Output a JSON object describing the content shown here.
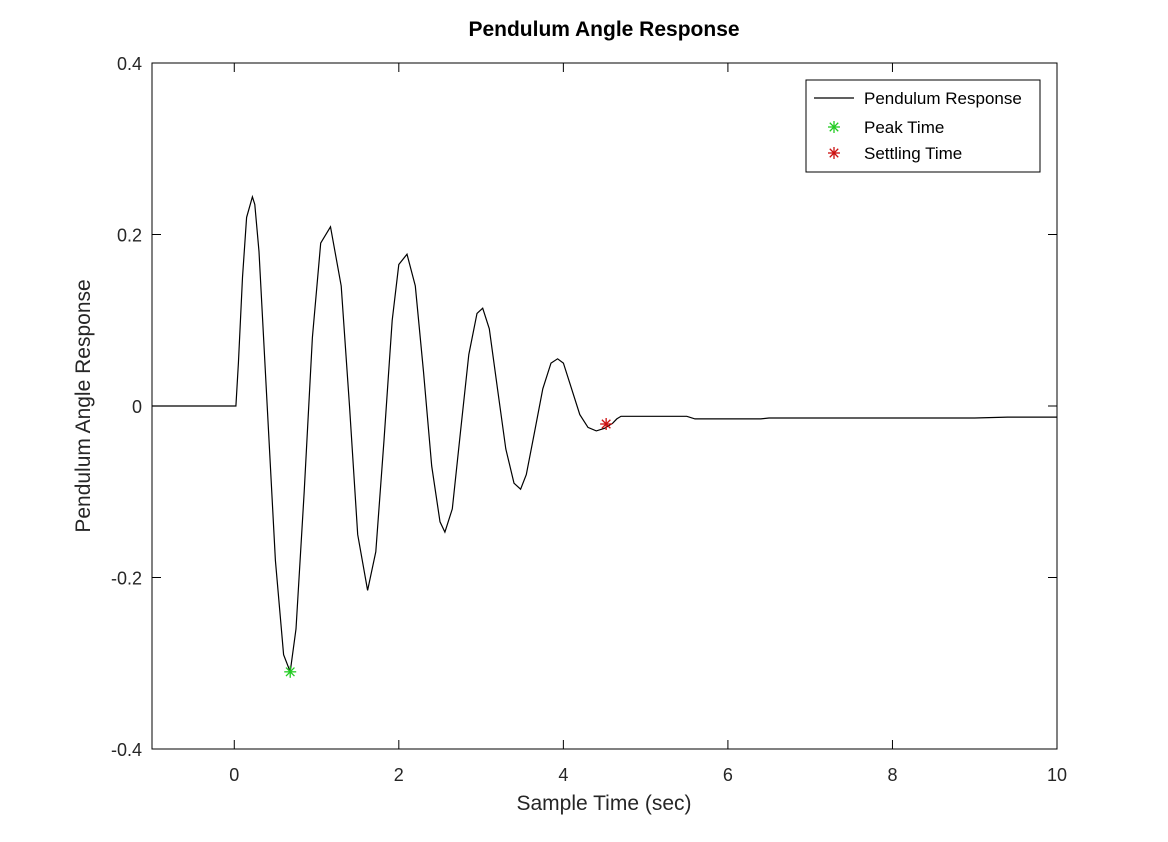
{
  "chart_data": {
    "type": "line",
    "title": "Pendulum Angle Response",
    "xlabel": "Sample Time (sec)",
    "ylabel": "Pendulum Angle Response",
    "xlim": [
      -1,
      10
    ],
    "ylim": [
      -0.4,
      0.4
    ],
    "xticks": [
      0,
      2,
      4,
      6,
      8,
      10
    ],
    "yticks": [
      -0.4,
      -0.2,
      0,
      0.2,
      0.4
    ],
    "ytick_labels": [
      "-0.4",
      "-0.2",
      "0",
      "0.2",
      "0.4"
    ],
    "grid": false,
    "legend_position": "top-right",
    "series": [
      {
        "name": "Pendulum Response",
        "color": "#000000",
        "x": [
          -1,
          0.0,
          0.02,
          0.05,
          0.1,
          0.15,
          0.22,
          0.25,
          0.3,
          0.4,
          0.5,
          0.6,
          0.68,
          0.75,
          0.85,
          0.95,
          1.05,
          1.17,
          1.3,
          1.4,
          1.5,
          1.62,
          1.72,
          1.82,
          1.92,
          2.0,
          2.1,
          2.2,
          2.3,
          2.4,
          2.5,
          2.56,
          2.65,
          2.75,
          2.85,
          2.95,
          3.02,
          3.1,
          3.2,
          3.3,
          3.4,
          3.48,
          3.55,
          3.65,
          3.75,
          3.85,
          3.93,
          4.0,
          4.1,
          4.2,
          4.3,
          4.4,
          4.5,
          4.6,
          4.65,
          4.7,
          5.0,
          5.5,
          5.6,
          6.0,
          6.4,
          6.5,
          7.0,
          7.1,
          8.0,
          8.9,
          9.0,
          9.4,
          9.5,
          10.0
        ],
        "y": [
          0,
          0,
          0,
          0.05,
          0.15,
          0.22,
          0.244,
          0.235,
          0.18,
          0.0,
          -0.18,
          -0.29,
          -0.31,
          -0.26,
          -0.1,
          0.08,
          0.19,
          0.209,
          0.14,
          0.0,
          -0.15,
          -0.215,
          -0.17,
          -0.04,
          0.1,
          0.165,
          0.177,
          0.14,
          0.04,
          -0.07,
          -0.135,
          -0.147,
          -0.12,
          -0.03,
          0.06,
          0.108,
          0.114,
          0.09,
          0.02,
          -0.05,
          -0.09,
          -0.097,
          -0.08,
          -0.03,
          0.02,
          0.05,
          0.055,
          0.05,
          0.02,
          -0.01,
          -0.025,
          -0.029,
          -0.026,
          -0.02,
          -0.015,
          -0.012,
          -0.012,
          -0.012,
          -0.015,
          -0.015,
          -0.015,
          -0.014,
          -0.014,
          -0.014,
          -0.014,
          -0.014,
          -0.014,
          -0.013,
          -0.013,
          -0.013
        ]
      }
    ],
    "markers": [
      {
        "name": "Peak Time",
        "color": "#22cc22",
        "x": 0.68,
        "y": -0.31
      },
      {
        "name": "Settling Time",
        "color": "#cc1111",
        "x": 4.52,
        "y": -0.021
      }
    ]
  }
}
